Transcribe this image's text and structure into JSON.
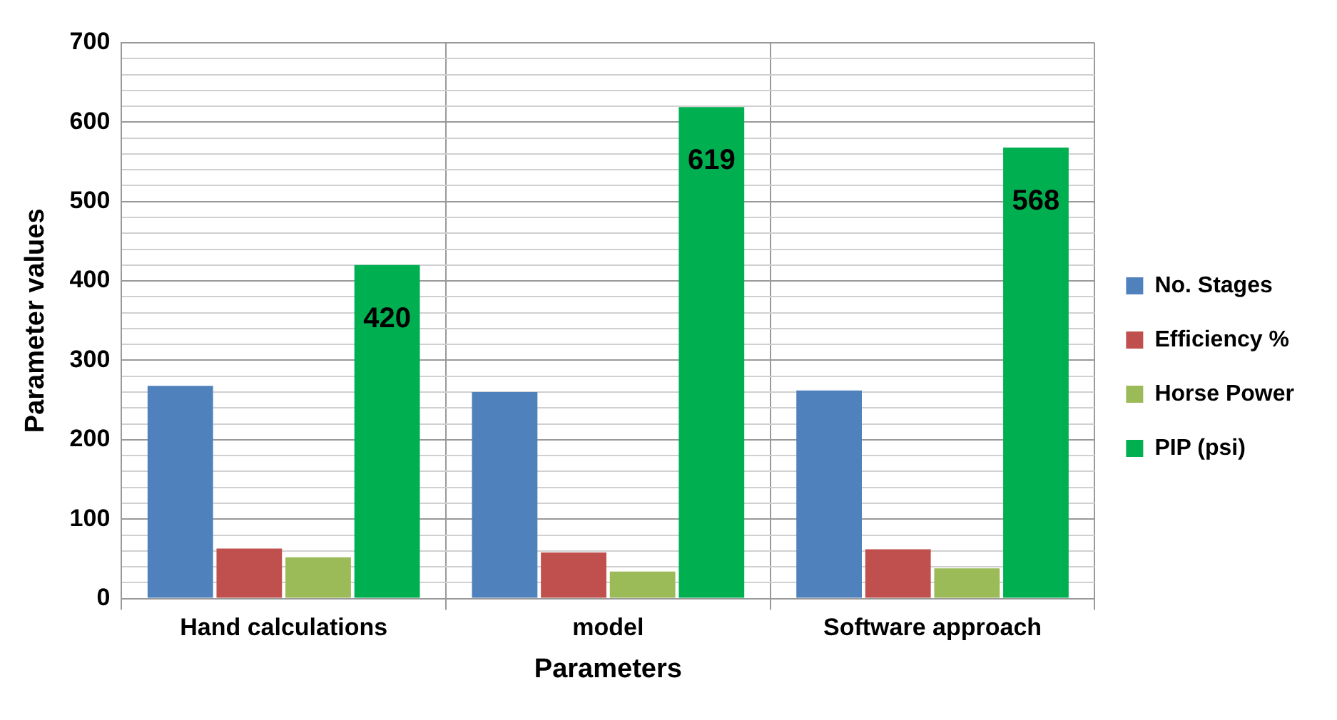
{
  "chart_data": {
    "type": "bar",
    "xlabel": "Parameters",
    "ylabel": "Parameter values",
    "categories": [
      "Hand calculations",
      "model",
      "Software approach"
    ],
    "series": [
      {
        "name": "No. Stages",
        "color": "#4f81bd",
        "values": [
          268,
          260,
          262
        ]
      },
      {
        "name": "Efficiency %",
        "color": "#c0504d",
        "values": [
          63,
          58,
          62
        ]
      },
      {
        "name": "Horse Power",
        "color": "#9bbb59",
        "values": [
          52,
          34,
          38
        ]
      },
      {
        "name": "PIP (psi)",
        "color": "#00b050",
        "values": [
          420,
          619,
          568
        ],
        "value_labels": [
          "420",
          "619",
          "568"
        ]
      }
    ],
    "ylim": [
      0,
      700
    ],
    "yticks": [
      0,
      {
        "value": 20,
        "label": null
      },
      {
        "value": 40,
        "label": null
      },
      {
        "value": 60,
        "label": null
      },
      {
        "value": 80,
        "label": null
      },
      100,
      {
        "value": 120,
        "label": null
      },
      {
        "value": 140,
        "label": null
      },
      {
        "value": 160,
        "label": null
      },
      {
        "value": 180,
        "label": null
      },
      200,
      {
        "value": 220,
        "label": null
      },
      {
        "value": 240,
        "label": null
      },
      {
        "value": 260,
        "label": null
      },
      {
        "value": 280,
        "label": null
      },
      300,
      {
        "value": 320,
        "label": null
      },
      {
        "value": 340,
        "label": null
      },
      {
        "value": 360,
        "label": null
      },
      {
        "value": 380,
        "label": null
      },
      400,
      {
        "value": 420,
        "label": null
      },
      {
        "value": 440,
        "label": null
      },
      {
        "value": 460,
        "label": null
      },
      {
        "value": 480,
        "label": null
      },
      500,
      {
        "value": 520,
        "label": null
      },
      {
        "value": 540,
        "label": null
      },
      {
        "value": 560,
        "label": null
      },
      {
        "value": 580,
        "label": null
      },
      600,
      {
        "value": 620,
        "label": null
      },
      {
        "value": 640,
        "label": null
      },
      {
        "value": 660,
        "label": null
      },
      {
        "value": 680,
        "label": null
      },
      700
    ],
    "grid": true,
    "legend": "right"
  }
}
